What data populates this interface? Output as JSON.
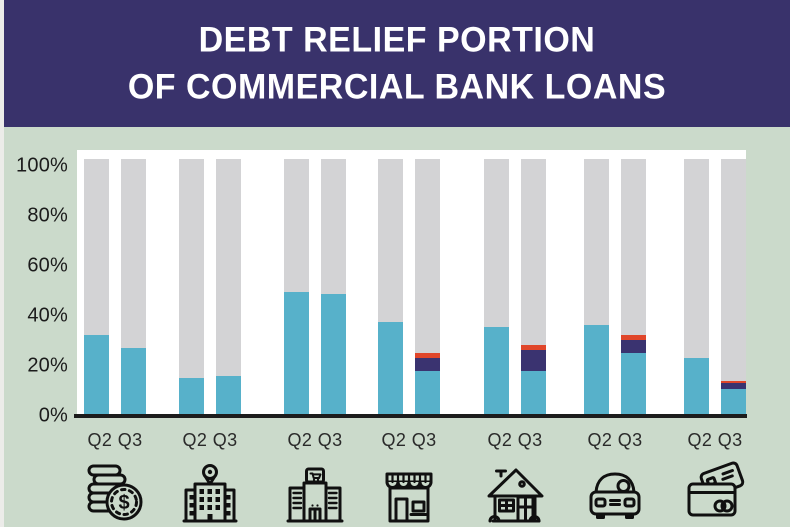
{
  "header": {
    "title_line1": "DEBT RELIEF PORTION",
    "title_line2": "OF COMMERCIAL BANK LOANS"
  },
  "colors": {
    "header_bg": "#39326b",
    "background": "#cbdacb",
    "panel_bg": "#ffffff",
    "bar_gray": "#d3d3d5",
    "bar_blue": "#57b1ca",
    "bar_navy": "#3a3370",
    "bar_orange": "#e0462a",
    "axis": "#1c1c1c",
    "icon_stroke": "#101010"
  },
  "chart_data": {
    "type": "bar",
    "stacked": true,
    "title": "DEBT RELIEF PORTION OF COMMERCIAL BANK LOANS",
    "unit": "%",
    "ylim": [
      0,
      100
    ],
    "grid": false,
    "legend": "none",
    "y_tick_labels": [
      "100%",
      "80%",
      "60%",
      "40%",
      "20%",
      "0%"
    ],
    "bar_labels": [
      "Q2",
      "Q3"
    ],
    "group_label_text": "Q2 Q3",
    "segment_note": "gray fills each bar to 100%",
    "groups": [
      {
        "icon": "coins-icon",
        "q2": {
          "blue": 31
        },
        "q3": {
          "blue": 26
        }
      },
      {
        "icon": "hotel-icon",
        "q2": {
          "blue": 14
        },
        "q3": {
          "blue": 15
        }
      },
      {
        "icon": "mall-icon",
        "q2": {
          "blue": 48
        },
        "q3": {
          "blue": 47
        }
      },
      {
        "icon": "store-icon",
        "q2": {
          "blue": 36
        },
        "q3": {
          "blue": 17,
          "navy": 5,
          "orange": 2
        }
      },
      {
        "icon": "house-icon",
        "q2": {
          "blue": 34
        },
        "q3": {
          "blue": 17,
          "navy": 8,
          "orange": 2
        }
      },
      {
        "icon": "car-icon",
        "q2": {
          "blue": 35
        },
        "q3": {
          "blue": 24,
          "navy": 5,
          "orange": 2
        }
      },
      {
        "icon": "credit-cards-icon",
        "q2": {
          "blue": 22
        },
        "q3": {
          "blue": 10,
          "navy": 2,
          "orange": 1
        }
      }
    ]
  }
}
